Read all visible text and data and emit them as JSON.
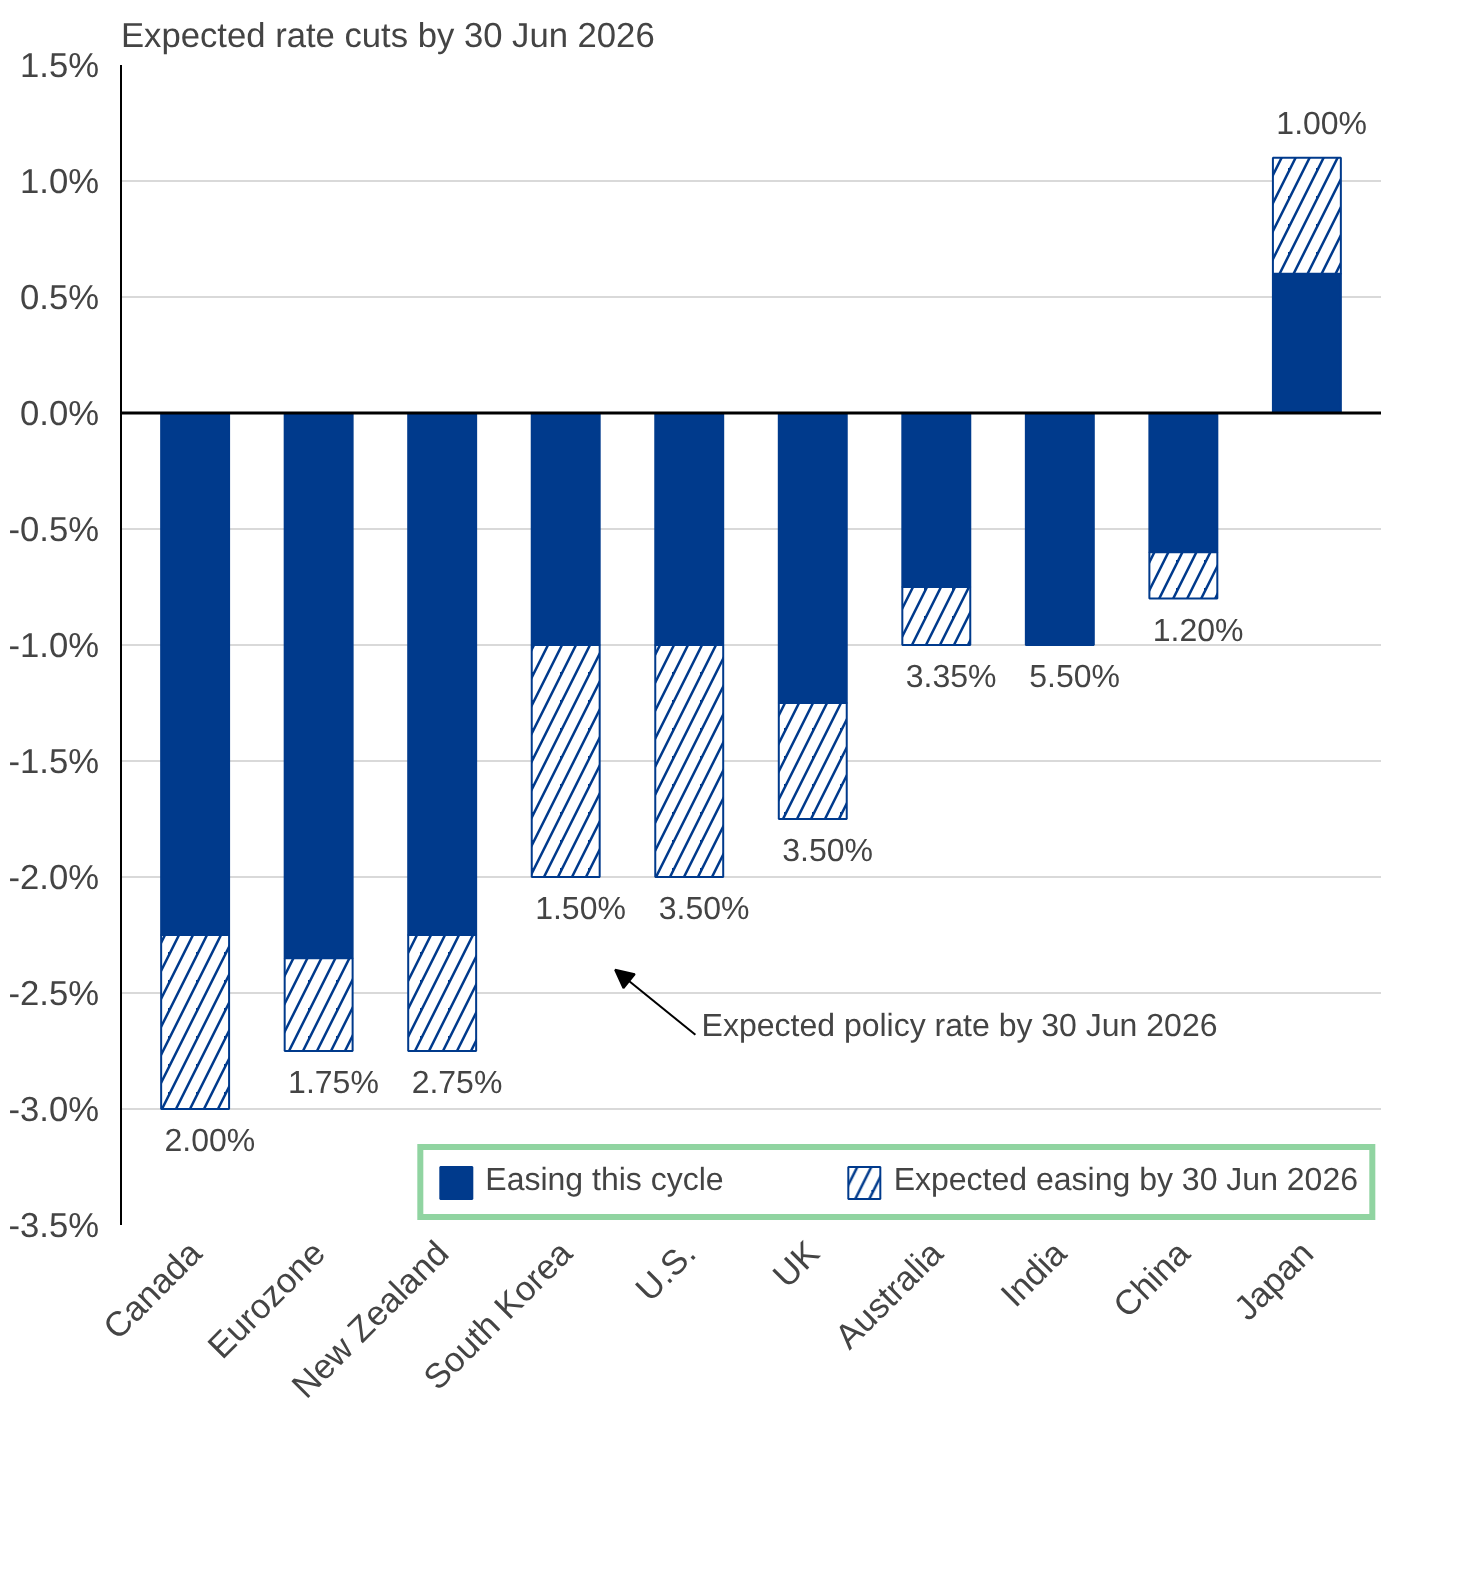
{
  "chart_data": {
    "type": "bar",
    "stacked": true,
    "subtitle": "Expected rate cuts by 30 Jun 2026",
    "categories": [
      "Canada",
      "Eurozone",
      "New Zealand",
      "South Korea",
      "U.S.",
      "UK",
      "Australia",
      "India",
      "China",
      "Japan"
    ],
    "series": [
      {
        "name": "Easing this cycle",
        "color": "#003a8c",
        "values": [
          -2.25,
          -2.35,
          -2.25,
          -1.0,
          -1.0,
          -1.25,
          -0.75,
          -1.0,
          -0.6,
          0.6
        ]
      },
      {
        "name": "Expected easing by 30 Jun 2026",
        "color": "#003a8c",
        "values": [
          -0.75,
          -0.4,
          -0.5,
          -1.0,
          -1.0,
          -0.5,
          -0.25,
          0,
          -0.2,
          0.5
        ]
      }
    ],
    "ylim": [
      -3.5,
      1.5
    ],
    "yticks": [
      {
        "value": -3.5,
        "label": "-3.5%"
      },
      {
        "value": -3.0,
        "label": "-3.0%"
      },
      {
        "value": -2.5,
        "label": "-2.5%"
      },
      {
        "value": -2.0,
        "label": "-2.0%"
      },
      {
        "value": -1.5,
        "label": "-1.5%"
      },
      {
        "value": -1.0,
        "label": "-1.0%"
      },
      {
        "value": -0.5,
        "label": "-0.5%"
      },
      {
        "value": 0.0,
        "label": "0.0%"
      },
      {
        "value": 0.5,
        "label": "0.5%"
      },
      {
        "value": 1.0,
        "label": "1.0%"
      },
      {
        "value": 1.5,
        "label": "1.5%"
      }
    ],
    "ref_lines": [
      {
        "axis": "y",
        "value": 0,
        "color": "#000000"
      }
    ],
    "annotations": [
      "Expected policy rate by 30 Jun 2026",
      {
        "text": "2.00%",
        "x": "Canada",
        "y": -3.0
      },
      {
        "text": "1.75%",
        "x": "Eurozone",
        "y": -2.75
      },
      {
        "text": "2.75%",
        "x": "New Zealand",
        "y": -2.75
      },
      {
        "text": "1.50%",
        "x": "South Korea",
        "y": -2.0
      },
      {
        "text": "3.50%",
        "x": "U.S.",
        "y": -2.0
      },
      {
        "text": "3.50%",
        "x": "UK",
        "y": -1.75
      },
      {
        "text": "3.35%",
        "x": "Australia",
        "y": -1.0
      },
      {
        "text": "5.50%",
        "x": "India",
        "y": -1.0
      },
      {
        "text": "1.20%",
        "x": "China",
        "y": -0.8
      },
      {
        "text": "1.00%",
        "x": "Japan",
        "y": 1.1
      }
    ],
    "grid": "y",
    "legend": "bottom"
  }
}
